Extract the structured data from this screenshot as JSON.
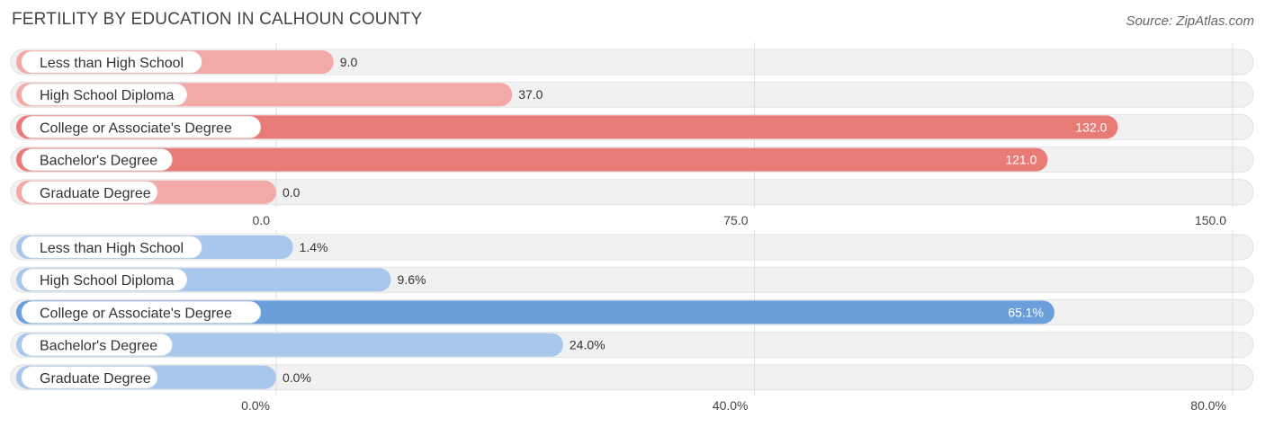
{
  "title": "FERTILITY BY EDUCATION IN CALHOUN COUNTY",
  "source": "Source: ZipAtlas.com",
  "chart_data": [
    {
      "type": "bar",
      "orientation": "horizontal",
      "categories": [
        "Less than High School",
        "High School Diploma",
        "College or Associate's Degree",
        "Bachelor's Degree",
        "Graduate Degree"
      ],
      "values": [
        9.0,
        37.0,
        132.0,
        121.0,
        0.0
      ],
      "value_labels": [
        "9.0",
        "37.0",
        "132.0",
        "121.0",
        "0.0"
      ],
      "xlim": [
        0,
        150
      ],
      "ticks": [
        0,
        75,
        150
      ],
      "tick_labels": [
        "0.0",
        "75.0",
        "150.0"
      ],
      "colors": {
        "light": "#f2a9a8",
        "strong": "#e97b77"
      }
    },
    {
      "type": "bar",
      "orientation": "horizontal",
      "categories": [
        "Less than High School",
        "High School Diploma",
        "College or Associate's Degree",
        "Bachelor's Degree",
        "Graduate Degree"
      ],
      "values": [
        1.4,
        9.6,
        65.1,
        24.0,
        0.0
      ],
      "value_labels": [
        "1.4%",
        "9.6%",
        "65.1%",
        "24.0%",
        "0.0%"
      ],
      "xlim": [
        0,
        80
      ],
      "ticks": [
        0,
        40,
        80
      ],
      "tick_labels": [
        "0.0%",
        "40.0%",
        "80.0%"
      ],
      "colors": {
        "light": "#a7c7ec",
        "strong": "#6a9fdc"
      }
    }
  ]
}
